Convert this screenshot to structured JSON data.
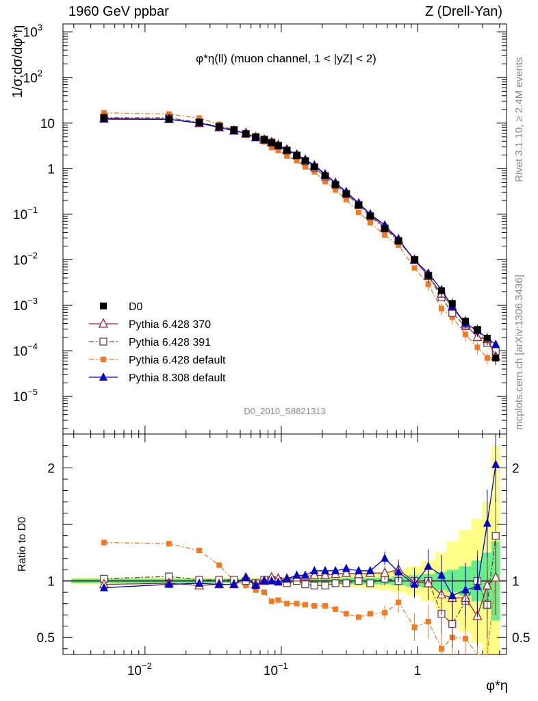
{
  "header": {
    "left": "1960 GeV ppbar",
    "right": "Z (Drell-Yan)"
  },
  "side": {
    "rivet": "Rivet 3.1.10, ≥ 2.4M events",
    "mcplots": "mcplots.cern.ch [arXiv:1306.3436]"
  },
  "chart_data": {
    "type": "line",
    "title": "φ*η(ll) (muon channel, 1 < |yZ| < 2)",
    "analysis_id": "D0_2010_S8821313",
    "xlabel": "φ*η",
    "ylabel": "1/σ;dσ/dφ*η",
    "ratio_ylabel": "Ratio to D0",
    "x_scale": "log",
    "y_scale": "log",
    "xlim": [
      0.0025,
      4.5
    ],
    "ylim": [
      1.5e-06,
      1500
    ],
    "ratio_ylim": [
      0.35,
      2.3
    ],
    "x": [
      0.005,
      0.015,
      0.025,
      0.035,
      0.045,
      0.055,
      0.065,
      0.075,
      0.085,
      0.095,
      0.11,
      0.13,
      0.15,
      0.175,
      0.21,
      0.25,
      0.3,
      0.37,
      0.45,
      0.575,
      0.725,
      0.95,
      1.2,
      1.5,
      1.8,
      2.25,
      2.75,
      3.25,
      3.75
    ],
    "series": [
      {
        "name": "D0",
        "color": "#000000",
        "marker": "square",
        "values": [
          13.0,
          12.5,
          10.3,
          8.3,
          7.0,
          5.8,
          5.0,
          4.3,
          3.7,
          3.2,
          2.55,
          1.95,
          1.5,
          1.1,
          0.7,
          0.45,
          0.28,
          0.16,
          0.092,
          0.048,
          0.026,
          0.01,
          0.0045,
          0.0021,
          0.0011,
          0.00045,
          0.00029,
          0.00019,
          7e-05
        ]
      },
      {
        "name": "Pythia 6.428 370",
        "color": "#a0202a",
        "marker": "triangle-open",
        "dash": "",
        "values": [
          12.7,
          12.2,
          9.9,
          8.0,
          6.8,
          6.0,
          4.85,
          4.3,
          3.8,
          3.3,
          2.6,
          2.0,
          1.56,
          1.15,
          0.74,
          0.48,
          0.3,
          0.17,
          0.098,
          0.051,
          0.028,
          0.0099,
          0.0044,
          0.0018,
          0.00093,
          0.00038,
          0.0002,
          0.00018,
          7.5e-05
        ]
      },
      {
        "name": "Pythia 6.428 391",
        "color": "#6a3d4a",
        "marker": "square-open",
        "dash": "7,3,2,3",
        "values": [
          13.2,
          13.0,
          10.4,
          8.4,
          7.1,
          5.8,
          4.9,
          4.35,
          3.75,
          3.2,
          2.5,
          1.95,
          1.45,
          1.05,
          0.67,
          0.44,
          0.275,
          0.16,
          0.09,
          0.049,
          0.026,
          0.01,
          0.0045,
          0.0015,
          0.00068,
          0.00035,
          0.00029,
          0.00015,
          9.8e-05
        ]
      },
      {
        "name": "Pythia 6.428 default",
        "color": "#f47920",
        "marker": "square-small",
        "dash": "7,3,2,3",
        "values": [
          16.8,
          15.8,
          12.9,
          9.4,
          7.0,
          5.6,
          4.6,
          3.9,
          2.9,
          2.5,
          1.9,
          1.5,
          1.1,
          0.85,
          0.52,
          0.34,
          0.21,
          0.11,
          0.065,
          0.035,
          0.021,
          0.0066,
          0.0029,
          0.00085,
          0.00055,
          0.00023,
          0.00012,
          7e-05,
          7.2e-05
        ]
      },
      {
        "name": "Pythia 8.308 default",
        "color": "#0000cc",
        "marker": "triangle",
        "dash": "",
        "values": [
          12.2,
          12.1,
          10.1,
          8.1,
          6.8,
          6.0,
          4.8,
          4.3,
          3.75,
          3.2,
          2.6,
          2.05,
          1.57,
          1.2,
          0.76,
          0.49,
          0.31,
          0.175,
          0.1,
          0.058,
          0.028,
          0.0097,
          0.0051,
          0.0022,
          0.00095,
          0.0004,
          0.00028,
          0.00019,
          0.00014
        ]
      }
    ],
    "ratio": [
      {
        "name": "Pythia 6.428 370",
        "values": [
          0.97,
          0.98,
          0.96,
          0.97,
          0.97,
          1.03,
          0.97,
          1.0,
          1.03,
          1.02,
          1.02,
          1.03,
          1.04,
          1.05,
          1.05,
          1.06,
          1.07,
          1.06,
          1.07,
          1.07,
          1.1,
          0.99,
          0.98,
          0.88,
          0.85,
          0.85,
          0.69,
          0.96,
          1.03
        ]
      },
      {
        "name": "Pythia 6.428 391",
        "values": [
          1.02,
          1.04,
          1.01,
          1.01,
          1.01,
          1.0,
          0.98,
          1.01,
          1.01,
          1.0,
          0.98,
          1.0,
          0.97,
          0.96,
          0.96,
          0.98,
          0.98,
          1.0,
          0.98,
          1.02,
          1.0,
          1.0,
          1.0,
          0.71,
          0.62,
          0.82,
          1.0,
          0.79,
          1.4
        ]
      },
      {
        "name": "Pythia 6.428 default",
        "values": [
          1.34,
          1.33,
          1.27,
          1.14,
          1.0,
          0.96,
          0.92,
          0.9,
          0.82,
          0.83,
          0.8,
          0.8,
          0.79,
          0.78,
          0.78,
          0.75,
          0.71,
          0.68,
          0.71,
          0.72,
          0.81,
          0.59,
          0.64,
          0.4,
          0.5,
          0.49,
          0.3,
          0.3,
          1.02
        ]
      },
      {
        "name": "Pythia 8.308 default",
        "values": [
          0.94,
          0.97,
          0.98,
          0.97,
          0.97,
          1.03,
          0.96,
          1.0,
          1.0,
          0.99,
          1.02,
          1.05,
          1.05,
          1.09,
          1.09,
          1.09,
          1.11,
          1.09,
          1.09,
          1.2,
          1.08,
          0.97,
          1.13,
          1.05,
          0.87,
          0.92,
          0.95,
          1.51,
          2.03
        ]
      }
    ],
    "ratio_band_inner": [
      0.02,
      0.02,
      0.02,
      0.02,
      0.02,
      0.02,
      0.02,
      0.02,
      0.02,
      0.02,
      0.02,
      0.02,
      0.02,
      0.02,
      0.02,
      0.02,
      0.03,
      0.03,
      0.03,
      0.03,
      0.04,
      0.05,
      0.06,
      0.08,
      0.1,
      0.13,
      0.18,
      0.25,
      0.35
    ],
    "ratio_band_outer": [
      0.03,
      0.03,
      0.03,
      0.03,
      0.03,
      0.03,
      0.03,
      0.03,
      0.03,
      0.03,
      0.03,
      0.03,
      0.03,
      0.04,
      0.04,
      0.04,
      0.05,
      0.06,
      0.07,
      0.08,
      0.1,
      0.13,
      0.18,
      0.25,
      0.35,
      0.45,
      0.55,
      0.7,
      1.2
    ],
    "legend_position": "bottom-left",
    "band_colors": {
      "inner": "#66ee88",
      "outer": "#ffff88"
    }
  }
}
